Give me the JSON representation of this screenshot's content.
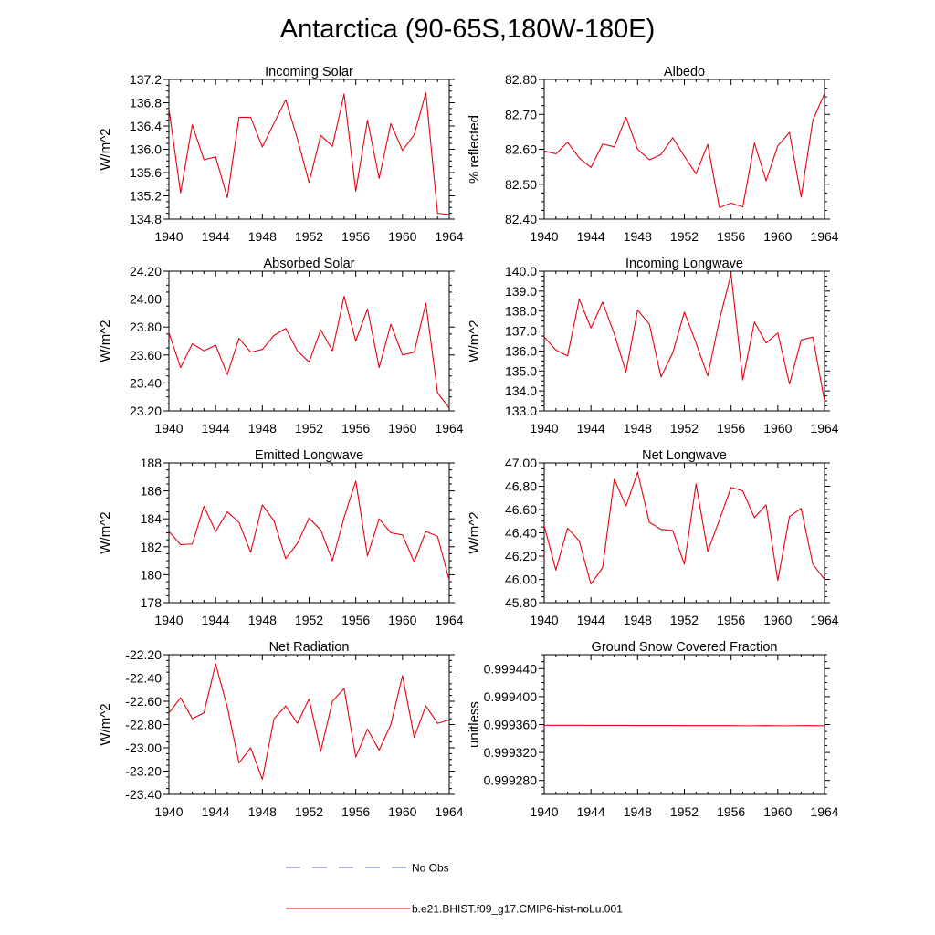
{
  "figure": {
    "title": "Antarctica (90-65S,180W-180E)"
  },
  "legend": {
    "items": [
      {
        "label": "No Obs",
        "color": "#6670b8",
        "dash": "dashed"
      },
      {
        "label": "b.e21.BHIST.f09_g17.CMIP6-hist-noLu.001",
        "color": "#e8000f",
        "dash": "solid"
      }
    ]
  },
  "chart_data": [
    {
      "type": "line",
      "title": "Incoming Solar",
      "ylabel": "W/m^2",
      "xlim": [
        1940,
        1964
      ],
      "ylim": [
        134.8,
        137.2
      ],
      "x_ticks": [
        1940,
        1944,
        1948,
        1952,
        1956,
        1960,
        1964
      ],
      "y_ticks": [
        "134.8",
        "135.2",
        "135.6",
        "136.0",
        "136.4",
        "136.8",
        "137.2"
      ],
      "series": [
        {
          "color": "#e8000f",
          "x": [
            1940,
            1941,
            1942,
            1943,
            1944,
            1945,
            1946,
            1947,
            1948,
            1949,
            1950,
            1951,
            1952,
            1953,
            1954,
            1955,
            1956,
            1957,
            1958,
            1959,
            1960,
            1961,
            1962,
            1963,
            1964
          ],
          "values": [
            136.7,
            135.25,
            136.42,
            135.82,
            135.87,
            135.17,
            136.55,
            136.55,
            136.04,
            136.45,
            136.85,
            136.18,
            135.43,
            136.24,
            136.05,
            136.95,
            135.28,
            136.5,
            135.5,
            136.44,
            135.98,
            136.25,
            136.97,
            134.9,
            134.88
          ]
        }
      ]
    },
    {
      "type": "line",
      "title": "Albedo",
      "ylabel": "% reflected",
      "xlim": [
        1940,
        1964
      ],
      "ylim": [
        82.4,
        82.8
      ],
      "x_ticks": [
        1940,
        1944,
        1948,
        1952,
        1956,
        1960,
        1964
      ],
      "y_ticks": [
        "82.40",
        "82.50",
        "82.60",
        "82.70",
        "82.80"
      ],
      "series": [
        {
          "color": "#e8000f",
          "x": [
            1940,
            1941,
            1942,
            1943,
            1944,
            1945,
            1946,
            1947,
            1948,
            1949,
            1950,
            1951,
            1952,
            1953,
            1954,
            1955,
            1956,
            1957,
            1958,
            1959,
            1960,
            1961,
            1962,
            1963,
            1964
          ],
          "values": [
            82.595,
            82.587,
            82.62,
            82.575,
            82.548,
            82.615,
            82.607,
            82.692,
            82.6,
            82.57,
            82.585,
            82.633,
            82.58,
            82.53,
            82.614,
            82.433,
            82.446,
            82.435,
            82.618,
            82.51,
            82.61,
            82.648,
            82.463,
            82.683,
            82.76
          ]
        }
      ]
    },
    {
      "type": "line",
      "title": "Absorbed Solar",
      "ylabel": "W/m^2",
      "xlim": [
        1940,
        1964
      ],
      "ylim": [
        23.2,
        24.2
      ],
      "x_ticks": [
        1940,
        1944,
        1948,
        1952,
        1956,
        1960,
        1964
      ],
      "y_ticks": [
        "23.20",
        "23.40",
        "23.60",
        "23.80",
        "24.00",
        "24.20"
      ],
      "series": [
        {
          "color": "#e8000f",
          "x": [
            1940,
            1941,
            1942,
            1943,
            1944,
            1945,
            1946,
            1947,
            1948,
            1949,
            1950,
            1951,
            1952,
            1953,
            1954,
            1955,
            1956,
            1957,
            1958,
            1959,
            1960,
            1961,
            1962,
            1963,
            1964
          ],
          "values": [
            23.76,
            23.51,
            23.68,
            23.63,
            23.67,
            23.46,
            23.72,
            23.62,
            23.64,
            23.74,
            23.79,
            23.63,
            23.55,
            23.78,
            23.63,
            24.02,
            23.7,
            23.93,
            23.51,
            23.82,
            23.6,
            23.62,
            23.97,
            23.33,
            23.22
          ]
        }
      ]
    },
    {
      "type": "line",
      "title": "Incoming Longwave",
      "ylabel": "W/m^2",
      "xlim": [
        1940,
        1964
      ],
      "ylim": [
        133.0,
        140.0
      ],
      "x_ticks": [
        1940,
        1944,
        1948,
        1952,
        1956,
        1960,
        1964
      ],
      "y_ticks": [
        "133.0",
        "134.0",
        "135.0",
        "136.0",
        "137.0",
        "138.0",
        "139.0",
        "140.0"
      ],
      "series": [
        {
          "color": "#e8000f",
          "x": [
            1940,
            1941,
            1942,
            1943,
            1944,
            1945,
            1946,
            1947,
            1948,
            1949,
            1950,
            1951,
            1952,
            1953,
            1954,
            1955,
            1956,
            1957,
            1958,
            1959,
            1960,
            1961,
            1962,
            1963,
            1964
          ],
          "values": [
            136.7,
            136.05,
            135.75,
            138.6,
            137.15,
            138.45,
            136.85,
            134.95,
            138.05,
            137.35,
            134.7,
            135.9,
            137.95,
            136.4,
            134.75,
            137.55,
            139.85,
            134.55,
            137.45,
            136.4,
            136.9,
            134.35,
            136.55,
            136.7,
            133.5
          ]
        }
      ]
    },
    {
      "type": "line",
      "title": "Emitted Longwave",
      "ylabel": "W/m^2",
      "xlim": [
        1940,
        1964
      ],
      "ylim": [
        178,
        188
      ],
      "x_ticks": [
        1940,
        1944,
        1948,
        1952,
        1956,
        1960,
        1964
      ],
      "y_ticks": [
        "178",
        "180",
        "182",
        "184",
        "186",
        "188"
      ],
      "series": [
        {
          "color": "#e8000f",
          "x": [
            1940,
            1941,
            1942,
            1943,
            1944,
            1945,
            1946,
            1947,
            1948,
            1949,
            1950,
            1951,
            1952,
            1953,
            1954,
            1955,
            1956,
            1957,
            1958,
            1959,
            1960,
            1961,
            1962,
            1963,
            1964
          ],
          "values": [
            183.1,
            182.15,
            182.2,
            184.9,
            183.1,
            184.5,
            183.75,
            181.6,
            185.0,
            183.85,
            181.15,
            182.25,
            184.05,
            183.2,
            181.0,
            184.1,
            186.7,
            181.35,
            184.0,
            183.0,
            182.85,
            180.9,
            183.1,
            182.75,
            179.6
          ]
        }
      ]
    },
    {
      "type": "line",
      "title": "Net Longwave",
      "ylabel": "W/m^2",
      "xlim": [
        1940,
        1964
      ],
      "ylim": [
        45.8,
        47.0
      ],
      "x_ticks": [
        1940,
        1944,
        1948,
        1952,
        1956,
        1960,
        1964
      ],
      "y_ticks": [
        "45.80",
        "46.00",
        "46.20",
        "46.40",
        "46.60",
        "46.80",
        "47.00"
      ],
      "series": [
        {
          "color": "#e8000f",
          "x": [
            1940,
            1941,
            1942,
            1943,
            1944,
            1945,
            1946,
            1947,
            1948,
            1949,
            1950,
            1951,
            1952,
            1953,
            1954,
            1955,
            1956,
            1957,
            1958,
            1959,
            1960,
            1961,
            1962,
            1963,
            1964
          ],
          "values": [
            46.46,
            46.08,
            46.44,
            46.33,
            45.96,
            46.1,
            46.86,
            46.63,
            46.92,
            46.49,
            46.43,
            46.42,
            46.13,
            46.82,
            46.24,
            46.51,
            46.79,
            46.76,
            46.53,
            46.64,
            45.99,
            46.54,
            46.61,
            46.13,
            46.0
          ]
        }
      ]
    },
    {
      "type": "line",
      "title": "Net Radiation",
      "ylabel": "W/m^2",
      "xlim": [
        1940,
        1964
      ],
      "ylim": [
        -23.4,
        -22.2
      ],
      "x_ticks": [
        1940,
        1944,
        1948,
        1952,
        1956,
        1960,
        1964
      ],
      "y_ticks": [
        "-23.40",
        "-23.20",
        "-23.00",
        "-22.80",
        "-22.60",
        "-22.40",
        "-22.20"
      ],
      "series": [
        {
          "color": "#e8000f",
          "x": [
            1940,
            1941,
            1942,
            1943,
            1944,
            1945,
            1946,
            1947,
            1948,
            1949,
            1950,
            1951,
            1952,
            1953,
            1954,
            1955,
            1956,
            1957,
            1958,
            1959,
            1960,
            1961,
            1962,
            1963,
            1964
          ],
          "values": [
            -22.7,
            -22.57,
            -22.75,
            -22.7,
            -22.28,
            -22.65,
            -23.13,
            -23.0,
            -23.27,
            -22.75,
            -22.64,
            -22.79,
            -22.58,
            -23.03,
            -22.6,
            -22.49,
            -23.08,
            -22.84,
            -23.02,
            -22.8,
            -22.38,
            -22.91,
            -22.64,
            -22.79,
            -22.76
          ]
        }
      ]
    },
    {
      "type": "line",
      "title": "Ground Snow Covered Fraction",
      "ylabel": "unitless",
      "xlim": [
        1940,
        1964
      ],
      "ylim": [
        0.99926,
        0.99946
      ],
      "x_ticks": [
        1940,
        1944,
        1948,
        1952,
        1956,
        1960,
        1964
      ],
      "y_ticks": [
        "0.999280",
        "0.999320",
        "0.999360",
        "0.999400",
        "0.999440"
      ],
      "series": [
        {
          "color": "#e8000f",
          "x": [
            1940,
            1941,
            1942,
            1943,
            1944,
            1945,
            1946,
            1947,
            1948,
            1949,
            1950,
            1951,
            1952,
            1953,
            1954,
            1955,
            1956,
            1957,
            1958,
            1959,
            1960,
            1961,
            1962,
            1963,
            1964
          ],
          "values": [
            0.999359,
            0.999359,
            0.999359,
            0.999359,
            0.9993588,
            0.9993588,
            0.9993588,
            0.9993588,
            0.9993586,
            0.9993586,
            0.9993586,
            0.9993586,
            0.9993584,
            0.9993584,
            0.9993584,
            0.9993584,
            0.9993584,
            0.9993582,
            0.9993582,
            0.9993584,
            0.9993582,
            0.9993582,
            0.9993584,
            0.9993584,
            0.9993582
          ]
        }
      ]
    }
  ]
}
